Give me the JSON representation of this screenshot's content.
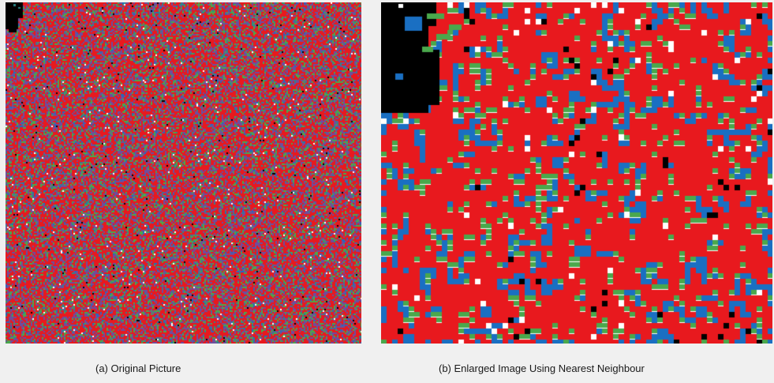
{
  "captions": {
    "original": "(a) Original Picture",
    "enlarged": "(b) Enlarged Image Using Nearest Neighbour"
  },
  "palette": {
    "red": "#e8191e",
    "blue": "#1a6fc2",
    "green": "#4aa84c",
    "black": "#000000",
    "white": "#ffffff",
    "purple": "#6d4e9e",
    "teal": "#2a8a8a"
  },
  "panels": {
    "original": {
      "name": "original-picture",
      "content": "noise image"
    },
    "enlarged": {
      "name": "enlarged-image",
      "content": "pixelated noise image"
    }
  }
}
